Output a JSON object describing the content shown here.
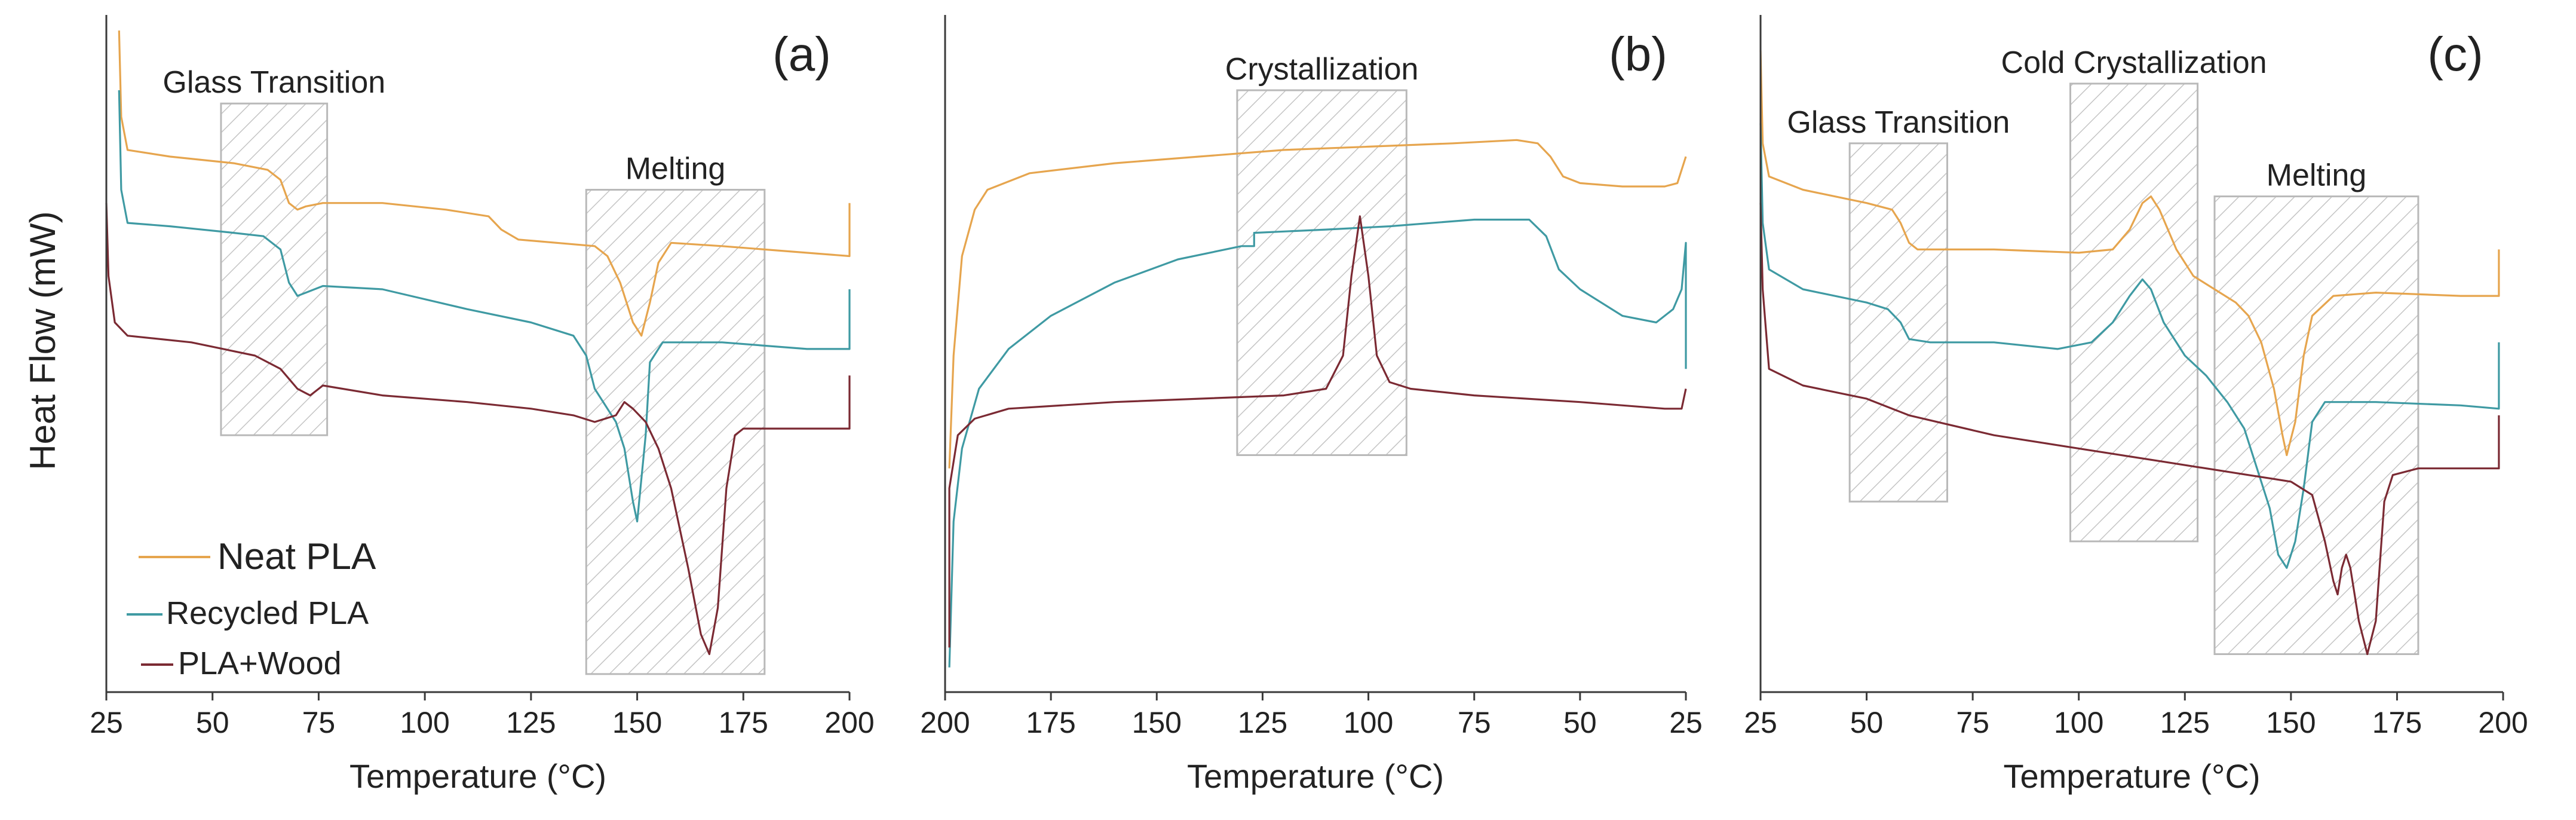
{
  "y_axis_label": "Heat Flow (mW)",
  "legend": [
    {
      "label": "Neat PLA",
      "color": "#e6a54e"
    },
    {
      "label": "Recycled PLA",
      "color": "#3f9aa3"
    },
    {
      "label": "PLA+Wood",
      "color": "#7b2a33"
    }
  ],
  "chart_data": [
    {
      "type": "line",
      "panel": "(a)",
      "xlabel": "Temperature (°C)",
      "ylabel": "Heat Flow (mW)",
      "xlim": [
        25,
        200
      ],
      "ylim": [
        0,
        100
      ],
      "xticks": [
        25,
        50,
        75,
        100,
        125,
        150,
        175,
        200
      ],
      "regions": [
        {
          "label": "Glass Transition",
          "x_range": [
            52,
            77
          ],
          "y_range": [
            38,
            88
          ]
        },
        {
          "label": "Melting",
          "x_range": [
            138,
            180
          ],
          "y_range": [
            2,
            75
          ]
        }
      ],
      "series": [
        {
          "name": "Neat PLA",
          "points": [
            [
              28,
              99
            ],
            [
              28.5,
              86
            ],
            [
              30,
              81
            ],
            [
              40,
              80
            ],
            [
              55,
              79
            ],
            [
              63,
              78
            ],
            [
              66,
              76.5
            ],
            [
              68,
              73
            ],
            [
              70,
              72
            ],
            [
              72,
              72.5
            ],
            [
              76,
              73
            ],
            [
              90,
              73
            ],
            [
              105,
              72
            ],
            [
              115,
              71
            ],
            [
              118,
              69
            ],
            [
              122,
              67.5
            ],
            [
              140,
              66.5
            ],
            [
              143,
              65
            ],
            [
              146,
              61
            ],
            [
              149,
              55
            ],
            [
              151,
              53
            ],
            [
              153,
              58
            ],
            [
              155,
              64
            ],
            [
              158,
              67
            ],
            [
              170,
              66.5
            ],
            [
              200,
              65
            ],
            [
              200,
              73
            ]
          ]
        },
        {
          "name": "Recycled PLA",
          "points": [
            [
              28,
              90
            ],
            [
              28.5,
              75
            ],
            [
              30,
              70
            ],
            [
              40,
              69.5
            ],
            [
              55,
              68.5
            ],
            [
              62,
              68
            ],
            [
              66,
              66
            ],
            [
              68,
              61
            ],
            [
              70,
              59
            ],
            [
              72,
              59.5
            ],
            [
              76,
              60.5
            ],
            [
              90,
              60
            ],
            [
              110,
              57
            ],
            [
              125,
              55
            ],
            [
              135,
              53
            ],
            [
              138,
              50
            ],
            [
              140,
              45
            ],
            [
              143,
              42
            ],
            [
              145,
              40
            ],
            [
              147,
              36
            ],
            [
              149,
              28
            ],
            [
              150,
              25
            ],
            [
              152,
              38
            ],
            [
              153,
              49
            ],
            [
              156,
              52
            ],
            [
              170,
              52
            ],
            [
              190,
              51
            ],
            [
              200,
              51
            ],
            [
              200,
              60
            ]
          ]
        },
        {
          "name": "PLA+Wood",
          "points": [
            [
              25,
              73
            ],
            [
              25.5,
              62
            ],
            [
              27,
              55
            ],
            [
              30,
              53
            ],
            [
              45,
              52
            ],
            [
              60,
              50
            ],
            [
              66,
              48
            ],
            [
              70,
              45
            ],
            [
              73,
              44
            ],
            [
              76,
              45.5
            ],
            [
              90,
              44
            ],
            [
              110,
              43
            ],
            [
              125,
              42
            ],
            [
              135,
              41
            ],
            [
              140,
              40
            ],
            [
              145,
              41
            ],
            [
              147,
              43
            ],
            [
              149,
              42
            ],
            [
              152,
              40
            ],
            [
              155,
              36
            ],
            [
              158,
              30
            ],
            [
              162,
              18
            ],
            [
              165,
              8
            ],
            [
              167,
              5
            ],
            [
              169,
              12
            ],
            [
              171,
              30
            ],
            [
              173,
              38
            ],
            [
              175,
              39
            ],
            [
              200,
              39
            ],
            [
              200,
              47
            ]
          ]
        }
      ]
    },
    {
      "type": "line",
      "panel": "(b)",
      "xlabel": "Temperature (°C)",
      "ylabel": "Heat Flow (mW)",
      "xlim": [
        200,
        25
      ],
      "ylim": [
        0,
        100
      ],
      "xticks": [
        200,
        175,
        150,
        125,
        100,
        75,
        50,
        25
      ],
      "regions": [
        {
          "label": "Crystallization",
          "x_range": [
            131,
            91
          ],
          "y_range": [
            35,
            90
          ]
        }
      ],
      "series": [
        {
          "name": "Neat PLA",
          "points": [
            [
              199,
              33
            ],
            [
              198,
              50
            ],
            [
              196,
              65
            ],
            [
              193,
              72
            ],
            [
              190,
              75
            ],
            [
              180,
              77.5
            ],
            [
              160,
              79
            ],
            [
              140,
              80
            ],
            [
              120,
              81
            ],
            [
              100,
              81.5
            ],
            [
              80,
              82
            ],
            [
              65,
              82.5
            ],
            [
              60,
              82
            ],
            [
              57,
              80
            ],
            [
              54,
              77
            ],
            [
              50,
              76
            ],
            [
              40,
              75.5
            ],
            [
              30,
              75.5
            ],
            [
              27,
              76
            ],
            [
              25,
              80
            ]
          ]
        },
        {
          "name": "Recycled PLA",
          "points": [
            [
              199,
              3
            ],
            [
              198,
              25
            ],
            [
              196,
              36
            ],
            [
              192,
              45
            ],
            [
              185,
              51
            ],
            [
              175,
              56
            ],
            [
              160,
              61
            ],
            [
              145,
              64.5
            ],
            [
              130,
              66.5
            ],
            [
              127,
              66.5
            ],
            [
              127,
              68.5
            ],
            [
              110,
              69
            ],
            [
              95,
              69.5
            ],
            [
              75,
              70.5
            ],
            [
              62,
              70.5
            ],
            [
              58,
              68
            ],
            [
              55,
              63
            ],
            [
              50,
              60
            ],
            [
              40,
              56
            ],
            [
              32,
              55
            ],
            [
              28,
              57
            ],
            [
              26,
              60
            ],
            [
              25,
              67
            ],
            [
              25,
              48
            ]
          ]
        },
        {
          "name": "PLA+Wood",
          "points": [
            [
              199,
              6
            ],
            [
              199,
              30
            ],
            [
              197,
              38
            ],
            [
              193,
              40.5
            ],
            [
              185,
              42
            ],
            [
              160,
              43
            ],
            [
              140,
              43.5
            ],
            [
              120,
              44
            ],
            [
              110,
              45
            ],
            [
              106,
              50
            ],
            [
              104,
              62
            ],
            [
              102,
              71
            ],
            [
              100,
              62
            ],
            [
              98,
              50
            ],
            [
              95,
              46
            ],
            [
              90,
              45
            ],
            [
              75,
              44
            ],
            [
              50,
              43
            ],
            [
              30,
              42
            ],
            [
              26,
              42
            ],
            [
              25,
              45
            ]
          ]
        }
      ]
    },
    {
      "type": "line",
      "panel": "(c)",
      "xlabel": "Temperature (°C)",
      "ylabel": "Heat Flow (mW)",
      "xlim": [
        25,
        200
      ],
      "ylim": [
        0,
        100
      ],
      "xticks": [
        25,
        50,
        75,
        100,
        125,
        150,
        175,
        200
      ],
      "regions": [
        {
          "label": "Glass Transition",
          "x_range": [
            46,
            69
          ],
          "y_range": [
            28,
            82
          ]
        },
        {
          "label": "Cold Crystallization",
          "x_range": [
            98,
            128
          ],
          "y_range": [
            22,
            91
          ]
        },
        {
          "label": "Melting",
          "x_range": [
            132,
            180
          ],
          "y_range": [
            5,
            74
          ]
        }
      ],
      "series": [
        {
          "name": "Neat PLA",
          "points": [
            [
              25,
              96
            ],
            [
              25.5,
              82
            ],
            [
              27,
              77
            ],
            [
              35,
              75
            ],
            [
              50,
              73
            ],
            [
              56,
              72
            ],
            [
              58,
              70
            ],
            [
              60,
              67
            ],
            [
              62,
              66
            ],
            [
              80,
              66
            ],
            [
              100,
              65.5
            ],
            [
              108,
              66
            ],
            [
              112,
              69
            ],
            [
              115,
              73
            ],
            [
              117,
              74
            ],
            [
              119,
              72
            ],
            [
              123,
              66
            ],
            [
              127,
              62
            ],
            [
              132,
              60
            ],
            [
              137,
              58
            ],
            [
              140,
              56
            ],
            [
              143,
              52
            ],
            [
              146,
              45
            ],
            [
              148,
              38
            ],
            [
              149,
              35
            ],
            [
              151,
              40
            ],
            [
              153,
              50
            ],
            [
              155,
              56
            ],
            [
              160,
              59
            ],
            [
              170,
              59.5
            ],
            [
              190,
              59
            ],
            [
              199,
              59
            ],
            [
              199,
              66
            ]
          ]
        },
        {
          "name": "Recycled PLA",
          "points": [
            [
              25,
              85
            ],
            [
              25.5,
              70
            ],
            [
              27,
              63
            ],
            [
              35,
              60
            ],
            [
              50,
              58
            ],
            [
              55,
              57
            ],
            [
              58,
              55
            ],
            [
              60,
              52.5
            ],
            [
              65,
              52
            ],
            [
              80,
              52
            ],
            [
              95,
              51
            ],
            [
              103,
              52
            ],
            [
              108,
              55
            ],
            [
              112,
              59
            ],
            [
              115,
              61.5
            ],
            [
              117,
              60
            ],
            [
              120,
              55
            ],
            [
              125,
              50
            ],
            [
              130,
              47
            ],
            [
              135,
              43
            ],
            [
              139,
              39
            ],
            [
              142,
              33
            ],
            [
              145,
              27
            ],
            [
              147,
              20
            ],
            [
              149,
              18
            ],
            [
              151,
              22
            ],
            [
              153,
              30
            ],
            [
              155,
              40
            ],
            [
              158,
              43
            ],
            [
              170,
              43
            ],
            [
              190,
              42.5
            ],
            [
              199,
              42
            ],
            [
              199,
              52
            ]
          ]
        },
        {
          "name": "PLA+Wood",
          "points": [
            [
              25,
              73
            ],
            [
              25.5,
              60
            ],
            [
              27,
              48
            ],
            [
              35,
              45.5
            ],
            [
              50,
              43.5
            ],
            [
              60,
              41
            ],
            [
              80,
              38
            ],
            [
              100,
              36
            ],
            [
              120,
              34
            ],
            [
              140,
              32
            ],
            [
              150,
              31
            ],
            [
              155,
              29
            ],
            [
              158,
              22
            ],
            [
              160,
              16
            ],
            [
              161,
              14
            ],
            [
              162,
              18
            ],
            [
              163,
              20
            ],
            [
              164,
              18
            ],
            [
              166,
              10
            ],
            [
              168,
              5
            ],
            [
              170,
              10
            ],
            [
              172,
              28
            ],
            [
              174,
              32
            ],
            [
              180,
              33
            ],
            [
              199,
              33
            ],
            [
              199,
              41
            ]
          ]
        }
      ]
    }
  ]
}
